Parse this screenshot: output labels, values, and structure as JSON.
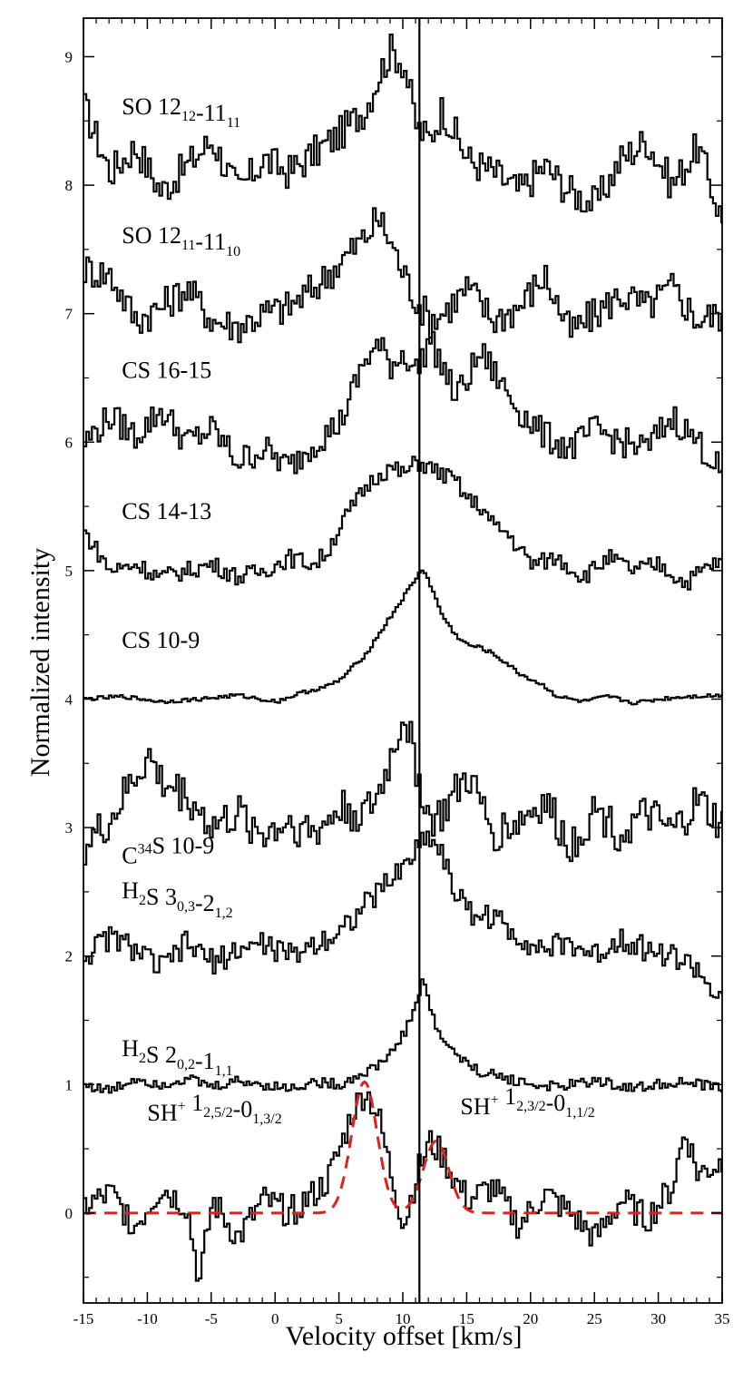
{
  "chart_data": {
    "type": "line",
    "xlabel": "Velocity offset [km/s]",
    "ylabel": "Normalized intensity",
    "xlim": [
      -15,
      35
    ],
    "ylim": [
      -0.7,
      9.3
    ],
    "x_ticks": [
      -15,
      -10,
      -5,
      0,
      5,
      10,
      15,
      20,
      25,
      30,
      35
    ],
    "y_ticks": [
      0,
      1,
      2,
      3,
      4,
      5,
      6,
      7,
      8,
      9
    ],
    "x_tick_labels": [
      "-15",
      "-10",
      "-5",
      "0",
      "5",
      "10",
      "15",
      "20",
      "25",
      "30",
      "35"
    ],
    "y_tick_labels": [
      "0",
      "1",
      "2",
      "3",
      "4",
      "5",
      "6",
      "7",
      "8",
      "9"
    ],
    "vertical_line_x": 11.3,
    "grid": false,
    "series": [
      {
        "name": "SO 12₁₂-11₁₁",
        "offset": 8,
        "label": {
          "main": "SO 12",
          "sub1": "12",
          "mid": "-11",
          "sub2": "11",
          "x": -12,
          "y": 8.55
        },
        "x": [
          -15,
          -13,
          -11,
          -9,
          -7,
          -5,
          -3,
          -1,
          1,
          3,
          5,
          7,
          8,
          9,
          10,
          11,
          12,
          13,
          15,
          17,
          19,
          21,
          23,
          25,
          27,
          29,
          31,
          33,
          35
        ],
        "y": [
          8.6,
          8.1,
          8.3,
          7.95,
          8.15,
          8.35,
          7.95,
          8.2,
          8.1,
          8.25,
          8.4,
          8.6,
          8.85,
          9.05,
          8.95,
          8.45,
          8.35,
          8.6,
          8.2,
          8.1,
          7.95,
          8.15,
          7.95,
          7.85,
          8.2,
          8.35,
          8.0,
          8.3,
          7.7
        ]
      },
      {
        "name": "SO 12₁₁-11₁₀",
        "offset": 7,
        "label": {
          "main": "SO 12",
          "sub1": "11",
          "mid": "-11",
          "sub2": "10",
          "x": -12,
          "y": 7.55
        },
        "x": [
          -15,
          -13,
          -11,
          -9,
          -7,
          -5,
          -3,
          -1,
          1,
          3,
          5,
          7,
          8,
          9,
          10,
          11,
          12,
          13,
          15,
          17,
          19,
          21,
          23,
          25,
          27,
          29,
          31,
          33,
          35
        ],
        "y": [
          7.35,
          7.3,
          6.95,
          7.05,
          7.2,
          6.95,
          6.9,
          7.0,
          7.05,
          7.2,
          7.4,
          7.6,
          7.75,
          7.55,
          7.3,
          7.1,
          6.95,
          7.0,
          7.2,
          6.95,
          7.05,
          7.3,
          6.85,
          7.0,
          7.15,
          7.05,
          7.2,
          6.95,
          7.0
        ]
      },
      {
        "name": "CS 16-15",
        "offset": 6,
        "label": {
          "main": "CS 16-15",
          "x": -12,
          "y": 6.5
        },
        "x": [
          -15,
          -13,
          -11,
          -9,
          -7,
          -5,
          -3,
          -1,
          1,
          3,
          5,
          6,
          7,
          8,
          9,
          10,
          11,
          12,
          13,
          14,
          15,
          16,
          17,
          19,
          21,
          23,
          25,
          27,
          29,
          31,
          33,
          35
        ],
        "y": [
          6.0,
          6.2,
          6.05,
          6.25,
          6.0,
          6.1,
          5.85,
          5.95,
          5.8,
          6.0,
          6.15,
          6.4,
          6.65,
          6.75,
          6.6,
          6.7,
          6.55,
          6.8,
          6.6,
          6.35,
          6.5,
          6.7,
          6.55,
          6.25,
          6.05,
          5.95,
          6.1,
          6.0,
          5.95,
          6.2,
          6.0,
          5.75
        ]
      },
      {
        "name": "CS 14-13",
        "offset": 5,
        "label": {
          "main": "CS 14-13",
          "x": -12,
          "y": 5.4
        },
        "x": [
          -15,
          -13,
          -11,
          -9,
          -7,
          -5,
          -3,
          -1,
          1,
          3,
          4,
          5,
          6,
          7,
          8,
          9,
          10,
          11,
          12,
          13,
          14,
          15,
          16,
          17,
          18,
          20,
          22,
          24,
          26,
          28,
          30,
          32,
          34,
          35
        ],
        "y": [
          5.3,
          5.0,
          5.05,
          4.95,
          5.0,
          5.05,
          4.95,
          5.0,
          5.1,
          5.05,
          5.15,
          5.35,
          5.5,
          5.65,
          5.75,
          5.8,
          5.75,
          5.85,
          5.8,
          5.75,
          5.7,
          5.55,
          5.5,
          5.35,
          5.3,
          5.05,
          5.1,
          4.95,
          5.1,
          5.0,
          5.05,
          4.9,
          5.05,
          5.05
        ]
      },
      {
        "name": "CS 10-9",
        "offset": 4,
        "label": {
          "main": "CS 10-9",
          "x": -12,
          "y": 4.4
        },
        "x": [
          -15,
          -12,
          -9,
          -6,
          -3,
          0,
          2,
          4,
          5,
          6,
          7,
          8,
          9,
          10,
          11,
          11.5,
          12,
          13,
          14,
          15,
          16,
          17,
          18,
          19,
          20,
          21,
          22,
          24,
          26,
          28,
          30,
          32,
          35
        ],
        "y": [
          4.0,
          4.02,
          3.98,
          4.0,
          4.03,
          3.98,
          4.05,
          4.1,
          4.15,
          4.25,
          4.35,
          4.5,
          4.65,
          4.8,
          4.95,
          5.02,
          4.9,
          4.65,
          4.5,
          4.42,
          4.4,
          4.35,
          4.28,
          4.2,
          4.15,
          4.1,
          4.02,
          3.98,
          4.02,
          3.97,
          4.0,
          4.02,
          4.03
        ]
      },
      {
        "name": "C³⁴S 10-9",
        "offset": 3,
        "label": {
          "main": "C",
          "sup": "34",
          "rest": "S 10-9",
          "x": -12,
          "y": 2.72
        },
        "x": [
          -15,
          -13,
          -11,
          -10,
          -9,
          -7,
          -5,
          -3,
          -1,
          1,
          3,
          5,
          7,
          8,
          9,
          10,
          11,
          12,
          13,
          15,
          17,
          19,
          21,
          23,
          25,
          27,
          29,
          31,
          33,
          35
        ],
        "y": [
          2.85,
          3.05,
          3.4,
          3.55,
          3.35,
          3.25,
          3.0,
          3.1,
          2.95,
          3.05,
          2.95,
          3.15,
          3.1,
          3.25,
          3.55,
          3.9,
          3.45,
          3.05,
          3.1,
          3.4,
          2.95,
          3.05,
          3.2,
          2.85,
          3.15,
          2.95,
          3.1,
          2.95,
          3.2,
          3.0
        ]
      },
      {
        "name": "H₂S 3₀,₃-2₁,₂",
        "offset": 2,
        "label": {
          "main": "H",
          "sub1": "2",
          "mid": "S 3",
          "sub2": "0,3",
          "mid2": "-2",
          "sub3": "1,2",
          "x": -12,
          "y": 2.45
        },
        "x": [
          -15,
          -13,
          -11,
          -9,
          -7,
          -5,
          -3,
          -1,
          1,
          3,
          5,
          6,
          7,
          8,
          9,
          10,
          11,
          12,
          13,
          14,
          15,
          17,
          19,
          21,
          23,
          25,
          27,
          29,
          31,
          33,
          34,
          35
        ],
        "y": [
          2.0,
          2.15,
          2.05,
          1.9,
          2.1,
          1.95,
          2.05,
          2.1,
          2.0,
          2.1,
          2.2,
          2.3,
          2.4,
          2.5,
          2.6,
          2.7,
          2.85,
          2.95,
          2.8,
          2.5,
          2.35,
          2.3,
          2.15,
          2.05,
          2.1,
          2.0,
          2.15,
          2.05,
          2.0,
          1.9,
          1.75,
          1.6
        ]
      },
      {
        "name": "H₂S 2₀,₂-1₁,₁",
        "offset": 1,
        "label": {
          "main": "H",
          "sub1": "2",
          "mid": "S 2",
          "sub2": "0,2",
          "mid2": "-1",
          "sub3": "1,1",
          "x": -12,
          "y": 1.22
        },
        "x": [
          -15,
          -13,
          -11,
          -9,
          -7,
          -5,
          -3,
          -1,
          1,
          3,
          5,
          6,
          7,
          8,
          9,
          10,
          10.5,
          11,
          11.5,
          12,
          12.5,
          13,
          14,
          15,
          16,
          18,
          20,
          22,
          25,
          28,
          31,
          33,
          35
        ],
        "y": [
          1.0,
          0.95,
          1.05,
          1.0,
          1.05,
          0.98,
          1.03,
          1.0,
          0.97,
          1.02,
          1.0,
          1.05,
          1.1,
          1.15,
          1.25,
          1.4,
          1.5,
          1.65,
          1.85,
          1.6,
          1.45,
          1.35,
          1.25,
          1.15,
          1.1,
          1.05,
          1.0,
          0.98,
          1.03,
          0.97,
          1.02,
          1.0,
          0.97
        ]
      },
      {
        "name": "SH⁺ 1₂,₅/₂-0₁,₃/₂",
        "offset": 0,
        "label": {
          "main": "SH",
          "sup": "+",
          "mid": " 1",
          "sub2": "2,5/2",
          "mid2": "-0",
          "sub3": "1,3/2",
          "x": -10,
          "y": 0.72
        },
        "x": [
          -15,
          -13,
          -11,
          -9,
          -7,
          -6,
          -5,
          -3,
          -1,
          1,
          3,
          4,
          5,
          6,
          7,
          8,
          9,
          10,
          11,
          12,
          13,
          14,
          15,
          17,
          19,
          21,
          23,
          25,
          27,
          29,
          31,
          32,
          33,
          35
        ],
        "y": [
          0.05,
          0.15,
          -0.1,
          0.2,
          0.05,
          -0.55,
          0.1,
          -0.2,
          0.1,
          0.0,
          0.15,
          0.25,
          0.5,
          0.8,
          0.95,
          0.75,
          0.3,
          -0.1,
          0.3,
          0.55,
          0.45,
          0.25,
          0.1,
          0.2,
          -0.1,
          0.15,
          0.0,
          -0.2,
          0.1,
          -0.05,
          0.2,
          0.65,
          0.3,
          0.4
        ]
      },
      {
        "name": "SH⁺ 1₂,₃/₂-0₁,₁/₂",
        "role": "label_only",
        "label": {
          "main": "SH",
          "sup": "+",
          "mid": " 1",
          "sub2": "2,3/2",
          "mid2": "-0",
          "sub3": "1,1/2",
          "x": 14.5,
          "y": 0.77
        }
      }
    ],
    "fit_model": {
      "style": "dashed",
      "color": "#e0201c",
      "components": [
        {
          "center": 7.0,
          "amplitude": 1.02,
          "sigma": 1.0
        },
        {
          "center": 12.6,
          "amplitude": 0.56,
          "sigma": 1.0
        }
      ]
    }
  },
  "colors": {
    "axis": "#000000",
    "trace": "#000000",
    "fit": "#e0201c"
  }
}
